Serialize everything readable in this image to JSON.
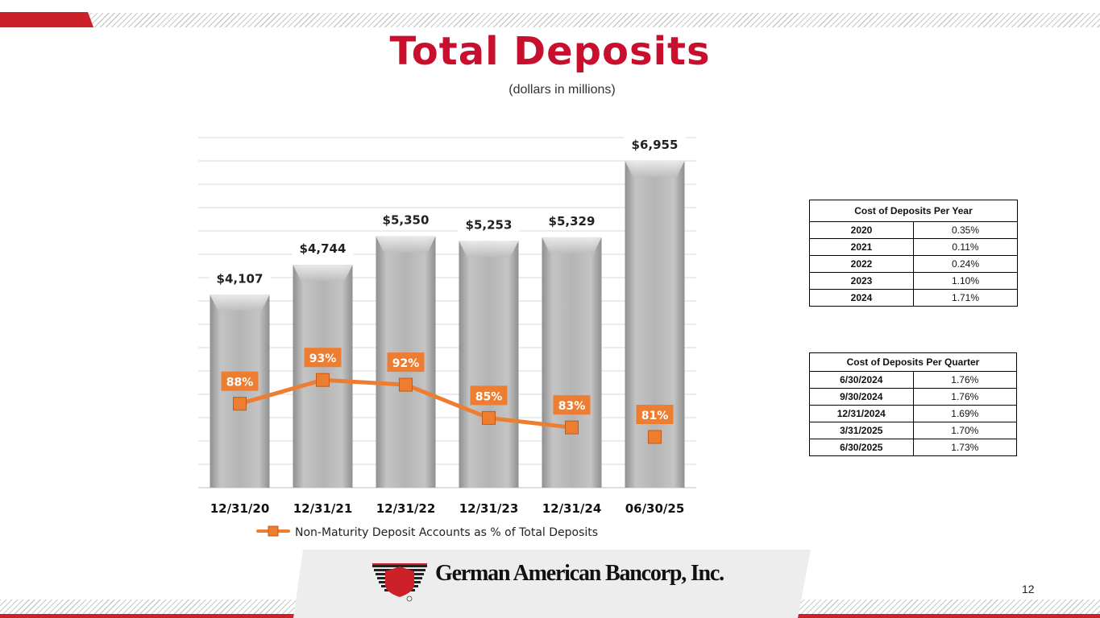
{
  "slide": {
    "title": "Total Deposits",
    "subtitle": "(dollars in millions)",
    "page_number": "12",
    "brand_name": "German American Bancorp, Inc.",
    "accent_color": "#c8102e",
    "line_color": "#ed7d31"
  },
  "chart_data": {
    "type": "bar",
    "categories": [
      "12/31/20",
      "12/31/21",
      "12/31/22",
      "12/31/23",
      "12/31/24",
      "06/30/25"
    ],
    "series": [
      {
        "values": [
          4107,
          4744,
          5350,
          5253,
          5329,
          6955
        ],
        "labels": [
          "$4,107",
          "$4,744",
          "$5,350",
          "$5,253",
          "$5,329",
          "$6,955"
        ],
        "color": "#b9b9b9"
      },
      {
        "name": "Non-Maturity Deposit Accounts as % of Total Deposits",
        "type": "line",
        "values": [
          88,
          93,
          92,
          85,
          83,
          81
        ],
        "labels": [
          "88%",
          "93%",
          "92%",
          "85%",
          "83%",
          "81%"
        ],
        "color": "#ed7d31"
      }
    ],
    "grid": true,
    "legend_position": "bottom"
  },
  "tables": {
    "per_year": {
      "header": "Cost of Deposits Per Year",
      "rows": [
        {
          "key": "2020",
          "value": "0.35%"
        },
        {
          "key": "2021",
          "value": "0.11%"
        },
        {
          "key": "2022",
          "value": "0.24%"
        },
        {
          "key": "2023",
          "value": "1.10%"
        },
        {
          "key": "2024",
          "value": "1.71%"
        }
      ]
    },
    "per_quarter": {
      "header": "Cost of Deposits Per Quarter",
      "rows": [
        {
          "key": "6/30/2024",
          "value": "1.76%"
        },
        {
          "key": "9/30/2024",
          "value": "1.76%"
        },
        {
          "key": "12/31/2024",
          "value": "1.69%"
        },
        {
          "key": "3/31/2025",
          "value": "1.70%"
        },
        {
          "key": "6/30/2025",
          "value": "1.73%"
        }
      ]
    }
  }
}
